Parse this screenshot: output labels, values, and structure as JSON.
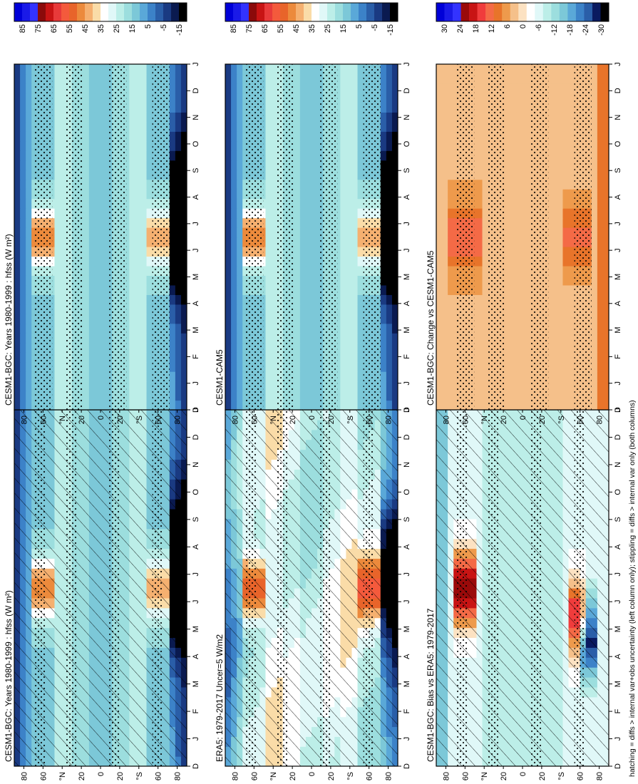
{
  "figure": {
    "footnote": "hatching = diffs > internal var+obs uncertainty (left column only); stippling = diffs > internal var only (both columns)"
  },
  "colors": {
    "abs_scale": [
      "#0000d8",
      "#1a1ae8",
      "#3333ff",
      "#8b0a0a",
      "#c81414",
      "#e83a3a",
      "#f45a3c",
      "#e8642a",
      "#ec8a3c",
      "#f5b070",
      "#fadca8",
      "#ffffff",
      "#e0f8f8",
      "#bceee8",
      "#9cdede",
      "#7cc8d8",
      "#5aa8d8",
      "#3c82c8",
      "#2a5ea8",
      "#1a3a82",
      "#0a1a50",
      "#000000"
    ],
    "diff_scale": [
      "#0000d8",
      "#1a1ae8",
      "#3333ff",
      "#9a0a0a",
      "#c81414",
      "#f03c3c",
      "#f46a46",
      "#e8742a",
      "#ee9a4c",
      "#f5c08a",
      "#fce2c2",
      "#ffffff",
      "#e0f8f8",
      "#bceee8",
      "#9cdede",
      "#7cc8d8",
      "#5aa8d8",
      "#3c82c8",
      "#2a5ea8",
      "#0a1a60",
      "#000000"
    ]
  },
  "chart_data": [
    {
      "type": "heatmap",
      "id": "p1",
      "title": "CESM1-BGC: Years 1980-1999 : hfss (W m²)",
      "variable": "hfss",
      "units": "W m-2",
      "x": [
        "D",
        "J",
        "F",
        "M",
        "A",
        "M",
        "J",
        "J",
        "A",
        "S",
        "O",
        "N",
        "D",
        "J"
      ],
      "y_tick_labels": [
        "80",
        "60",
        "°N",
        "20",
        "0",
        "20",
        "°S",
        "60",
        "80"
      ],
      "ylim": [
        -90,
        90
      ],
      "colorbar": [
        "85",
        "75",
        "65",
        "55",
        "45",
        "35",
        "25",
        "15",
        "5",
        "-5",
        "-15"
      ],
      "overlay": "hatching and stippling"
    },
    {
      "type": "heatmap",
      "id": "p2",
      "title": "CESM1-BGC: Years 1980-1999 : hfss (W m²)",
      "variable": "hfss",
      "units": "W m-2",
      "x": [
        "D",
        "J",
        "F",
        "M",
        "A",
        "M",
        "J",
        "J",
        "A",
        "S",
        "O",
        "N",
        "D",
        "J"
      ],
      "y_tick_labels": [
        "80",
        "60",
        "°N",
        "20",
        "0",
        "20",
        "°S",
        "60",
        "80"
      ],
      "ylim": [
        -90,
        90
      ],
      "colorbar": [
        "85",
        "75",
        "65",
        "55",
        "45",
        "35",
        "25",
        "15",
        "5",
        "-5",
        "-15"
      ],
      "overlay": "stippling"
    },
    {
      "type": "heatmap",
      "id": "p3",
      "title": "ERA5: 1979-2017 Uncer=5 W/m2",
      "x": [
        "D",
        "J",
        "F",
        "M",
        "A",
        "M",
        "J",
        "J",
        "A",
        "S",
        "O",
        "N",
        "D",
        "J"
      ],
      "y_tick_labels": [
        "80",
        "60",
        "°N",
        "20",
        "0",
        "20",
        "°S",
        "60",
        "80"
      ],
      "ylim": [
        -90,
        90
      ],
      "colorbar": [
        "85",
        "75",
        "65",
        "55",
        "45",
        "35",
        "25",
        "15",
        "5",
        "-5",
        "-15"
      ],
      "overlay": "hatching and stippling"
    },
    {
      "type": "heatmap",
      "id": "p4",
      "title": "CESM1-CAM5",
      "x": [
        "D",
        "J",
        "F",
        "M",
        "A",
        "M",
        "J",
        "J",
        "A",
        "S",
        "O",
        "N",
        "D",
        "J"
      ],
      "y_tick_labels": [
        "80",
        "60",
        "°N",
        "20",
        "0",
        "20",
        "°S",
        "60",
        "80"
      ],
      "ylim": [
        -90,
        90
      ],
      "colorbar": [
        "85",
        "75",
        "65",
        "55",
        "45",
        "35",
        "25",
        "15",
        "5",
        "-5",
        "-15"
      ],
      "overlay": "stippling"
    },
    {
      "type": "heatmap",
      "id": "p5",
      "title": "CESM1-BGC: Bias vs ERA5: 1979-2017",
      "x": [
        "D",
        "J",
        "F",
        "M",
        "A",
        "M",
        "J",
        "J",
        "A",
        "S",
        "O",
        "N",
        "D",
        "J"
      ],
      "y_tick_labels": [
        "80",
        "60",
        "°N",
        "20",
        "0",
        "20",
        "°S",
        "60",
        "80"
      ],
      "ylim": [
        -90,
        90
      ],
      "colorbar": [
        "30",
        "24",
        "18",
        "12",
        "6",
        "0",
        "-6",
        "-12",
        "-18",
        "-24",
        "-30"
      ],
      "overlay": "hatching and stippling"
    },
    {
      "type": "heatmap",
      "id": "p6",
      "title": "CESM1-BGC: Change vs CESM1-CAM5",
      "x": [
        "D",
        "J",
        "F",
        "M",
        "A",
        "M",
        "J",
        "J",
        "A",
        "S",
        "O",
        "N",
        "D",
        "J"
      ],
      "y_tick_labels": [
        "80",
        "60",
        "°N",
        "20",
        "0",
        "20",
        "°S",
        "60",
        "80"
      ],
      "ylim": [
        -90,
        90
      ],
      "colorbar": [
        "30",
        "24",
        "18",
        "12",
        "6",
        "0",
        "-6",
        "-12",
        "-18",
        "-24",
        "-30"
      ],
      "overlay": "stippling"
    }
  ]
}
